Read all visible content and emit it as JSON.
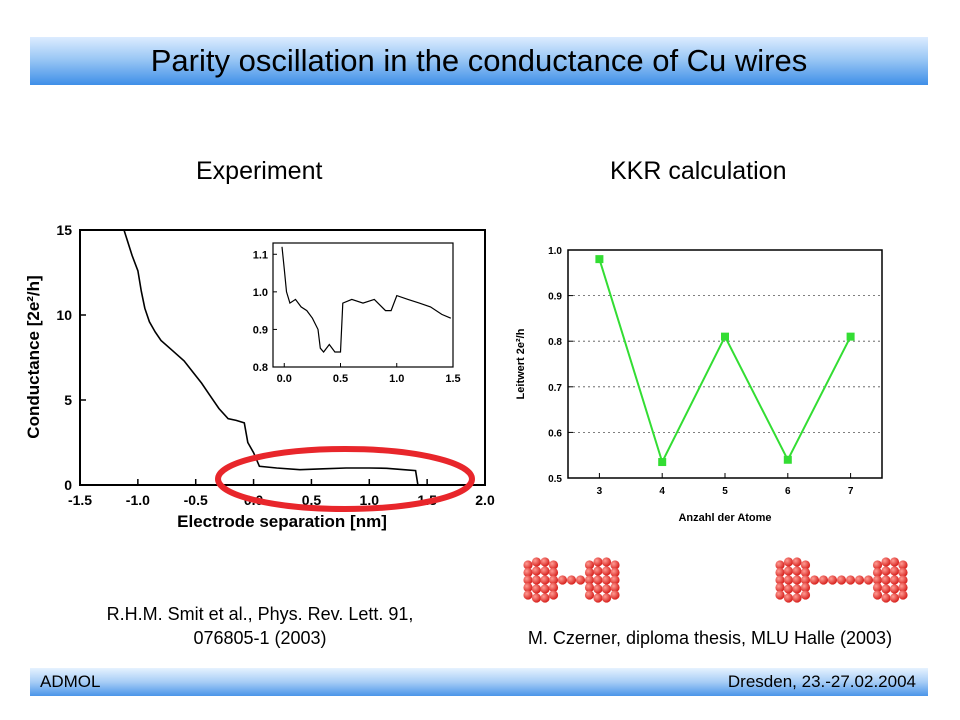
{
  "slide": {
    "title": "Parity oscillation in the conductance of Cu wires",
    "left_heading": "Experiment",
    "right_heading": "KKR calculation",
    "left_citation_line1": "R.H.M. Smit et al., Phys. Rev. Lett. 91,",
    "left_citation_line2": "076805-1 (2003)",
    "right_citation": "M. Czerner, diploma thesis, MLU Halle (2003)",
    "footer_left": "ADMOL",
    "footer_right": "Dresden, 23.-27.02.2004",
    "highlight_color": "#e8262b"
  },
  "chart_data": [
    {
      "type": "line",
      "xlabel": "Electrode separation [nm]",
      "ylabel": "Conductance [2e²/h]",
      "xlim": [
        -1.5,
        2.0
      ],
      "ylim": [
        0,
        15
      ],
      "xticks": [
        "-1.5",
        "-1.0",
        "-0.5",
        "0.0",
        "0.5",
        "1.0",
        "1.5",
        "2.0"
      ],
      "yticks": [
        "0",
        "5",
        "10",
        "15"
      ],
      "series": [
        {
          "color": "#000000",
          "points": [
            [
              -1.12,
              15
            ],
            [
              -1.05,
              13.5
            ],
            [
              -1.0,
              12.6
            ],
            [
              -0.97,
              11.4
            ],
            [
              -0.94,
              10.4
            ],
            [
              -0.9,
              9.6
            ],
            [
              -0.85,
              9.0
            ],
            [
              -0.8,
              8.5
            ],
            [
              -0.7,
              7.9
            ],
            [
              -0.6,
              7.3
            ],
            [
              -0.52,
              6.6
            ],
            [
              -0.45,
              6.0
            ],
            [
              -0.38,
              5.3
            ],
            [
              -0.3,
              4.5
            ],
            [
              -0.22,
              3.9
            ],
            [
              -0.15,
              3.8
            ],
            [
              -0.08,
              3.65
            ],
            [
              -0.05,
              2.5
            ],
            [
              0.0,
              1.9
            ],
            [
              0.05,
              1.1
            ],
            [
              0.2,
              1.0
            ],
            [
              0.4,
              0.9
            ],
            [
              0.6,
              0.95
            ],
            [
              0.8,
              1.0
            ],
            [
              1.0,
              1.0
            ],
            [
              1.15,
              0.98
            ],
            [
              1.3,
              0.9
            ],
            [
              1.4,
              0.85
            ],
            [
              1.42,
              0.0
            ]
          ]
        }
      ],
      "inset": {
        "xlim": [
          -0.1,
          1.5
        ],
        "ylim": [
          0.8,
          1.13
        ],
        "xticks": [
          "0.0",
          "0.5",
          "1.0",
          "1.5"
        ],
        "yticks": [
          "0.8",
          "0.9",
          "1.0",
          "1.1"
        ],
        "points": [
          [
            -0.02,
            1.12
          ],
          [
            0.0,
            1.06
          ],
          [
            0.02,
            1.0
          ],
          [
            0.05,
            0.97
          ],
          [
            0.1,
            0.98
          ],
          [
            0.15,
            0.96
          ],
          [
            0.2,
            0.95
          ],
          [
            0.25,
            0.93
          ],
          [
            0.3,
            0.9
          ],
          [
            0.32,
            0.85
          ],
          [
            0.35,
            0.84
          ],
          [
            0.4,
            0.86
          ],
          [
            0.45,
            0.84
          ],
          [
            0.5,
            0.84
          ],
          [
            0.52,
            0.97
          ],
          [
            0.6,
            0.98
          ],
          [
            0.7,
            0.97
          ],
          [
            0.8,
            0.98
          ],
          [
            0.9,
            0.95
          ],
          [
            0.95,
            0.95
          ],
          [
            1.0,
            0.99
          ],
          [
            1.1,
            0.98
          ],
          [
            1.2,
            0.97
          ],
          [
            1.3,
            0.96
          ],
          [
            1.4,
            0.94
          ],
          [
            1.48,
            0.93
          ]
        ]
      }
    },
    {
      "type": "line",
      "xlabel": "Anzahl der Atome",
      "ylabel": "Leitwert 2e²/h",
      "xlim": [
        2.5,
        7.5
      ],
      "ylim": [
        0.5,
        1.0
      ],
      "xticks": [
        "3",
        "4",
        "5",
        "6",
        "7"
      ],
      "yticks": [
        "0.5",
        "0.6",
        "0.7",
        "0.8",
        "0.9",
        "1.0"
      ],
      "grid": true,
      "series": [
        {
          "color": "#33dd33",
          "x": [
            3,
            4,
            5,
            6,
            7
          ],
          "values": [
            0.98,
            0.535,
            0.81,
            0.54,
            0.81
          ]
        }
      ]
    }
  ]
}
